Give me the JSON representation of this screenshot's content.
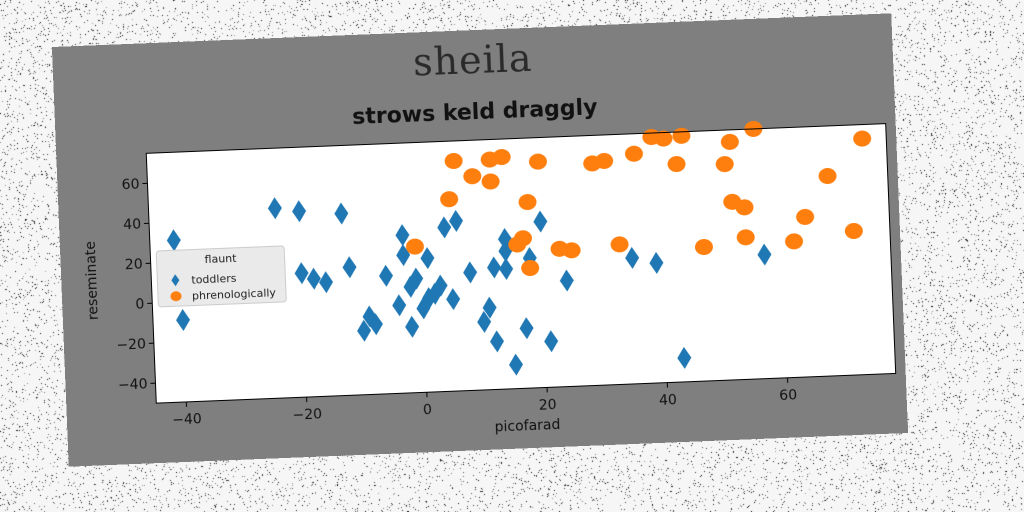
{
  "figure": {
    "suptitle": "sheila",
    "background": "#7f7f7f",
    "plot_background": "#ffffff"
  },
  "chart_data": {
    "type": "scatter",
    "title": "strows keld draggly",
    "xlabel": "picofarad",
    "ylabel": "reseminate",
    "xlim": [
      -45,
      78
    ],
    "ylim": [
      -50,
      75
    ],
    "xticks": [
      -40,
      -20,
      0,
      20,
      40,
      60
    ],
    "yticks": [
      -40,
      -20,
      0,
      20,
      40,
      60
    ],
    "grid": false,
    "legend": {
      "title": "flaunt",
      "placement": "center-left"
    },
    "series": [
      {
        "name": "toddlers",
        "marker": "diamond",
        "color": "#1f77b4",
        "points": [
          [
            -41,
            31
          ],
          [
            -40,
            -9
          ],
          [
            -24,
            45
          ],
          [
            -20,
            43
          ],
          [
            -20,
            12
          ],
          [
            -18,
            9
          ],
          [
            -16,
            7
          ],
          [
            -13,
            41
          ],
          [
            -12,
            14
          ],
          [
            -10,
            -18
          ],
          [
            -9,
            -11
          ],
          [
            -8,
            -15
          ],
          [
            -6,
            9
          ],
          [
            -4,
            -6
          ],
          [
            -3,
            29
          ],
          [
            -3,
            19
          ],
          [
            -2,
            3
          ],
          [
            -2,
            -17
          ],
          [
            -1,
            7
          ],
          [
            0,
            -8
          ],
          [
            1,
            -3
          ],
          [
            1,
            17
          ],
          [
            2,
            -1
          ],
          [
            3,
            3
          ],
          [
            4,
            32
          ],
          [
            5,
            -4
          ],
          [
            6,
            35
          ],
          [
            8,
            9
          ],
          [
            10,
            -16
          ],
          [
            11,
            -9
          ],
          [
            12,
            11
          ],
          [
            12,
            -26
          ],
          [
            14,
            19
          ],
          [
            14,
            25
          ],
          [
            14,
            10
          ],
          [
            15,
            -38
          ],
          [
            17,
            -20
          ],
          [
            18,
            15
          ],
          [
            20,
            33
          ],
          [
            21,
            -27
          ],
          [
            24,
            3
          ],
          [
            35,
            13
          ],
          [
            39,
            10
          ],
          [
            43,
            -38
          ],
          [
            57,
            12
          ]
        ]
      },
      {
        "name": "phrenologically",
        "marker": "circle",
        "color": "#ff7f0e",
        "points": [
          [
            -1,
            23
          ],
          [
            5,
            46
          ],
          [
            6,
            65
          ],
          [
            9,
            57
          ],
          [
            12,
            54
          ],
          [
            12,
            65
          ],
          [
            14,
            66
          ],
          [
            16,
            22
          ],
          [
            17,
            25
          ],
          [
            18,
            43
          ],
          [
            18,
            10
          ],
          [
            20,
            63
          ],
          [
            23,
            19
          ],
          [
            25,
            18
          ],
          [
            29,
            61
          ],
          [
            31,
            62
          ],
          [
            33,
            20
          ],
          [
            36,
            65
          ],
          [
            39,
            73
          ],
          [
            41,
            72
          ],
          [
            43,
            59
          ],
          [
            44,
            73
          ],
          [
            47,
            17
          ],
          [
            51,
            58
          ],
          [
            52,
            69
          ],
          [
            52,
            39
          ],
          [
            54,
            36
          ],
          [
            54,
            21
          ],
          [
            56,
            75
          ],
          [
            62,
            18
          ],
          [
            64,
            30
          ],
          [
            68,
            50
          ],
          [
            72,
            22
          ],
          [
            74,
            68
          ]
        ]
      }
    ]
  }
}
